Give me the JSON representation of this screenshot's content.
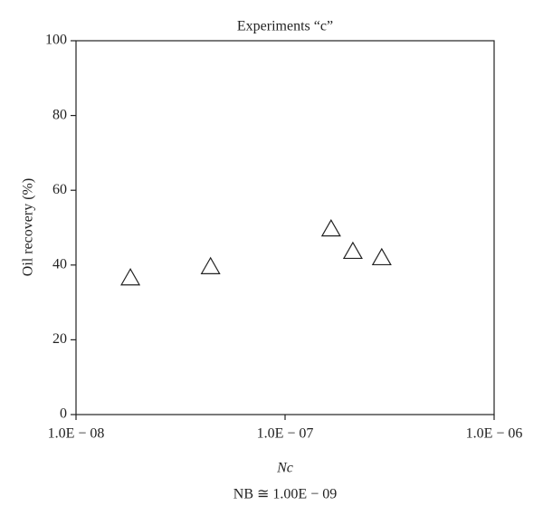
{
  "chart_data": {
    "type": "scatter",
    "title": "Experiments “c”",
    "xlabel": "Nc",
    "annotation": "NB ≅ 1.00E − 09",
    "ylabel": "Oil recovery (%)",
    "x": [
      1.82e-08,
      4.4e-08,
      1.66e-07,
      2.11e-07,
      2.9e-07
    ],
    "values": [
      36.5,
      39.5,
      49.6,
      43.6,
      41.9
    ],
    "color": "#222222",
    "xscale": "log",
    "xlim": [
      1e-08,
      1e-06
    ],
    "xticks": [
      {
        "value": 1e-08,
        "label": "1.0E − 08"
      },
      {
        "value": 1e-07,
        "label": "1.0E − 07"
      },
      {
        "value": 1e-06,
        "label": "1.0E − 06"
      }
    ],
    "ylim": [
      0,
      100
    ],
    "yticks": [
      0,
      20,
      40,
      60,
      80,
      100
    ]
  }
}
